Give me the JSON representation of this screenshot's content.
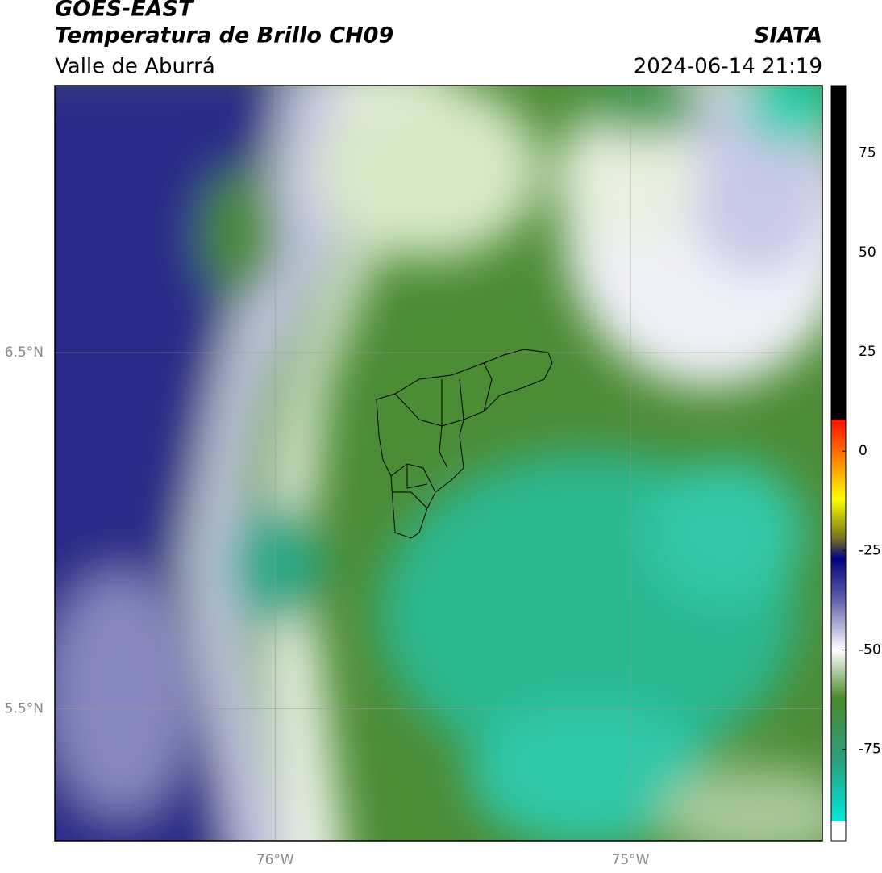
{
  "chart_data": {
    "type": "map",
    "title": "GOES-EAST",
    "subtitle": "Temperatura de Brillo CH09",
    "region": "Valle de Aburrá",
    "source": "SIATA",
    "timestamp": "2024-06-14 21:19",
    "xlim": [
      -76.62,
      -74.46
    ],
    "ylim": [
      5.13,
      7.25
    ],
    "xticks": [
      {
        "value": -76,
        "label": "76°W"
      },
      {
        "value": -75,
        "label": "75°W"
      }
    ],
    "yticks": [
      {
        "value": 6.5,
        "label": "6.5°N"
      },
      {
        "value": 5.5,
        "label": "5.5°N"
      }
    ],
    "grid": true,
    "colorbar_lim": [
      -98,
      92
    ],
    "colorbar_ticks": [
      75,
      50,
      25,
      0,
      -25,
      -50,
      -75
    ],
    "colormap": [
      {
        "value": -98,
        "color": "#ffffff"
      },
      {
        "value": -93,
        "color": "#ffffff"
      },
      {
        "value": -93,
        "color": "#00e8d8"
      },
      {
        "value": -78,
        "color": "#2aa080"
      },
      {
        "value": -62,
        "color": "#4a8a2a"
      },
      {
        "value": -50,
        "color": "#ffffff"
      },
      {
        "value": -38,
        "color": "#6868b0"
      },
      {
        "value": -27,
        "color": "#000080"
      },
      {
        "value": -22,
        "color": "#707020"
      },
      {
        "value": -12,
        "color": "#ffff00"
      },
      {
        "value": -3,
        "color": "#ff9000"
      },
      {
        "value": 8,
        "color": "#ff1000"
      },
      {
        "value": 8,
        "color": "#000000"
      },
      {
        "value": 92,
        "color": "#000000"
      }
    ]
  }
}
